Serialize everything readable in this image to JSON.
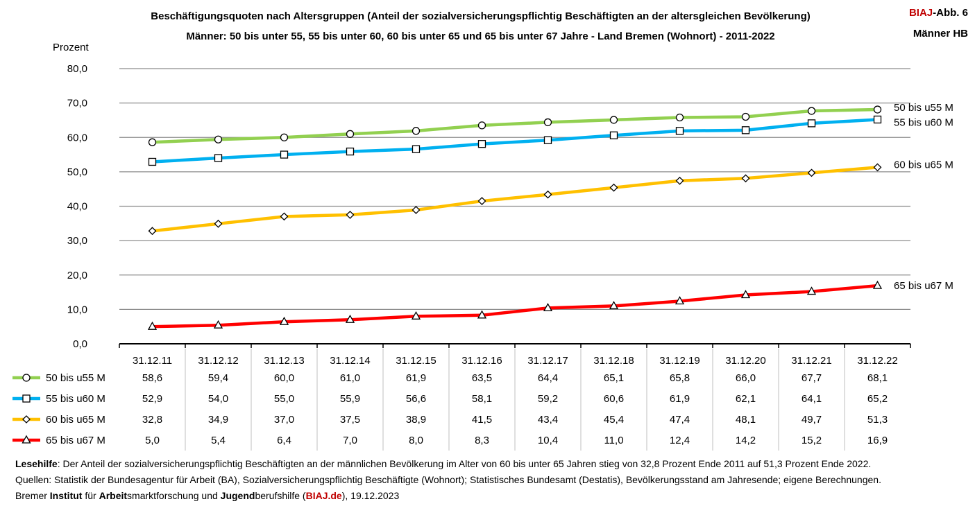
{
  "title": {
    "line1": "Beschäftigungsquoten nach Altersgruppen (Anteil der sozialversicherungspflichtig Beschäftigten an der altersgleichen Bevölkerung)",
    "line2": "Männer: 50 bis unter 55, 55 bis unter 60, 60 bis unter 65 und 65 bis unter 67 Jahre - Land Bremen (Wohnort) - 2011-2022"
  },
  "tag": {
    "brand": "BIAJ",
    "suffix": "-Abb. 6",
    "line2": "Männer HB"
  },
  "footer": {
    "lesehilfe_label": "Lesehilfe",
    "lesehilfe_text": ": Der Anteil der sozialversicherungspflichtig Beschäftigten an der männlichen Bevölkerung im Alter von 60 bis unter 65 Jahren stieg von 32,8 Prozent Ende 2011 auf 51,3 Prozent Ende 2022.",
    "sources": "Quellen: Statistik der Bundesagentur für Arbeit (BA), Sozialversicherungspflichtig Beschäftigte (Wohnort); Statistisches Bundesamt (Destatis), Bevölkerungsstand am Jahresende; eigene Berechnungen.",
    "org_parts": [
      "Bremer ",
      "Institut",
      " für ",
      "Arbeit",
      "smarktforschung und ",
      "Jugend",
      "berufshilfe ("
    ],
    "org_link": "BIAJ.de",
    "org_date": "), 19.12.2023"
  },
  "chart_data": {
    "type": "line",
    "title": "Beschäftigungsquoten nach Altersgruppen - Männer - Land Bremen (Wohnort) - 2011-2022",
    "ylabel": "Prozent",
    "xlabel": "",
    "ylim": [
      0,
      80
    ],
    "yticks": [
      "0,0",
      "10,0",
      "20,0",
      "30,0",
      "40,0",
      "50,0",
      "60,0",
      "70,0",
      "80,0"
    ],
    "grid": true,
    "categories": [
      "31.12.11",
      "31.12.12",
      "31.12.13",
      "31.12.14",
      "31.12.15",
      "31.12.16",
      "31.12.17",
      "31.12.18",
      "31.12.19",
      "31.12.20",
      "31.12.21",
      "31.12.22"
    ],
    "series": [
      {
        "name": "50 bis u55 M",
        "color": "#92d050",
        "marker": "circle",
        "values": [
          58.6,
          59.4,
          60.0,
          61.0,
          61.9,
          63.5,
          64.4,
          65.1,
          65.8,
          66.0,
          67.7,
          68.1
        ],
        "labels": [
          "58,6",
          "59,4",
          "60,0",
          "61,0",
          "61,9",
          "63,5",
          "64,4",
          "65,1",
          "65,8",
          "66,0",
          "67,7",
          "68,1"
        ]
      },
      {
        "name": "55 bis u60 M",
        "color": "#00b0f0",
        "marker": "square",
        "values": [
          52.9,
          54.0,
          55.0,
          55.9,
          56.6,
          58.1,
          59.2,
          60.6,
          61.9,
          62.1,
          64.1,
          65.2
        ],
        "labels": [
          "52,9",
          "54,0",
          "55,0",
          "55,9",
          "56,6",
          "58,1",
          "59,2",
          "60,6",
          "61,9",
          "62,1",
          "64,1",
          "65,2"
        ]
      },
      {
        "name": "60 bis u65 M",
        "color": "#ffc000",
        "marker": "diamond",
        "values": [
          32.8,
          34.9,
          37.0,
          37.5,
          38.9,
          41.5,
          43.4,
          45.4,
          47.4,
          48.1,
          49.7,
          51.3
        ],
        "labels": [
          "32,8",
          "34,9",
          "37,0",
          "37,5",
          "38,9",
          "41,5",
          "43,4",
          "45,4",
          "47,4",
          "48,1",
          "49,7",
          "51,3"
        ]
      },
      {
        "name": "65 bis u67 M",
        "color": "#ff0000",
        "marker": "triangle",
        "values": [
          5.0,
          5.4,
          6.4,
          7.0,
          8.0,
          8.3,
          10.4,
          11.0,
          12.4,
          14.2,
          15.2,
          16.9
        ],
        "labels": [
          "5,0",
          "5,4",
          "6,4",
          "7,0",
          "8,0",
          "8,3",
          "10,4",
          "11,0",
          "12,4",
          "14,2",
          "15,2",
          "16,9"
        ]
      }
    ]
  }
}
